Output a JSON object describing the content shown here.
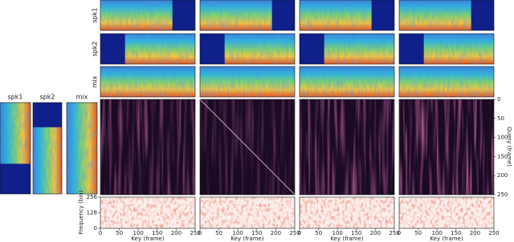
{
  "left_panels": {
    "labels": [
      "spk1",
      "spk2",
      "mix"
    ]
  },
  "row_labels": [
    "spk1",
    "spk2",
    "mix"
  ],
  "query_axis": {
    "label": "Query (frame)",
    "ticks": [
      0,
      50,
      100,
      150,
      200,
      250
    ]
  },
  "frequency_axis": {
    "label": "Frequency (bin)",
    "ticks": [
      0,
      128,
      256
    ]
  },
  "key_axis": {
    "label": "Key (frame)",
    "ticks": [
      0,
      50,
      100,
      150,
      200,
      250
    ]
  }
}
